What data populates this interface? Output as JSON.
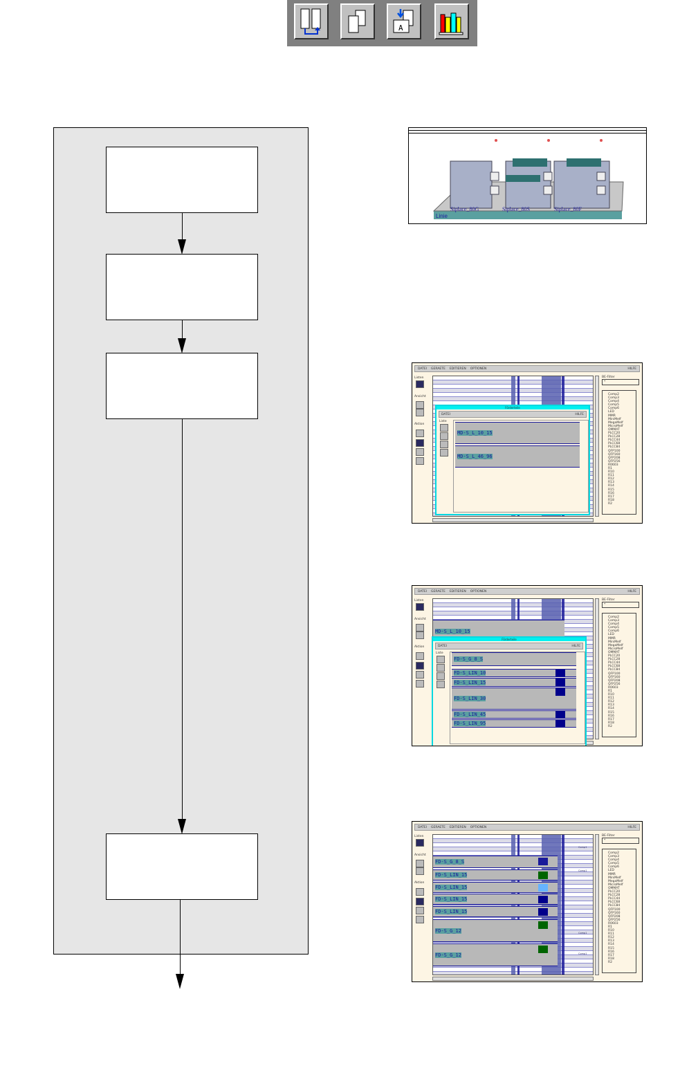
{
  "toolbar": {
    "buttons": [
      {
        "icon": "list-transfer-icon"
      },
      {
        "icon": "duplicate-pages-icon"
      },
      {
        "icon": "replace-document-icon"
      },
      {
        "icon": "library-books-icon"
      }
    ]
  },
  "flowchart": {
    "boxes": [
      {
        "label": ""
      },
      {
        "label": ""
      },
      {
        "label": ""
      },
      {
        "label": ""
      }
    ]
  },
  "line_view": {
    "machines": [
      "Siplace_80G",
      "Siplace_80S",
      "Siplace_80F"
    ],
    "line_label": "Linie"
  },
  "app": {
    "menu": [
      "DATEI",
      "GERAETE",
      "EDITIEREN",
      "OPTIONEN"
    ],
    "help": "HILFE",
    "side_sections": [
      "Listen",
      "Ansicht",
      "Aktion"
    ],
    "filter_label": "BE-Filter",
    "filter_value": "*",
    "components": [
      "Comp2",
      "Comp3",
      "Comp4",
      "Comp5",
      "Comp6",
      "LED",
      "MMR",
      "MiniMelf",
      "MegaMelf",
      "MicroMelf",
      "OMMAT",
      "PLCC20",
      "PLCC28",
      "PLCC44",
      "PLCC68",
      "PLCC84",
      "QFP100",
      "QFP160",
      "QFP208",
      "QFP256",
      "R0603",
      "R1",
      "R10",
      "R11",
      "R12",
      "R13",
      "R14",
      "R15",
      "R16",
      "R17",
      "R18",
      "R2"
    ]
  },
  "screens": [
    {
      "inner": {
        "title": "Förderteile",
        "menu": "DATEI",
        "help": "HILFE",
        "list_label": "Liste",
        "rows": [
          "MD-S_L_10_15",
          "MD-S_L_46_96"
        ]
      }
    },
    {
      "canvas_rows": [
        "MD-S_L_10_15"
      ],
      "inner": {
        "title": "Förderteile",
        "menu": "DATEI",
        "help": "HILFE",
        "list_label": "Liste",
        "rows": [
          "FD-S_G_8_S",
          "FD-S_LIN_10",
          "FD-S_LIN_15",
          "FD-S_LIN_30",
          "FD-S_LIN_45",
          "FD-S_LIN_95"
        ]
      }
    },
    {
      "canvas_rows": [
        "FD-S_G_8_S",
        "FD-S_LIN_15",
        "FD-S_LIN_15",
        "FD-S_LIN_15",
        "FD-S_LIN_15",
        "FD-S_G_12",
        "FD-S_G_12"
      ],
      "row_colors": [
        "#1a1a9a",
        "#006400",
        "#66b3ff",
        "#00008b",
        "#00008b",
        "#006400",
        "#006400"
      ],
      "slot_label": "Comp1"
    }
  ]
}
